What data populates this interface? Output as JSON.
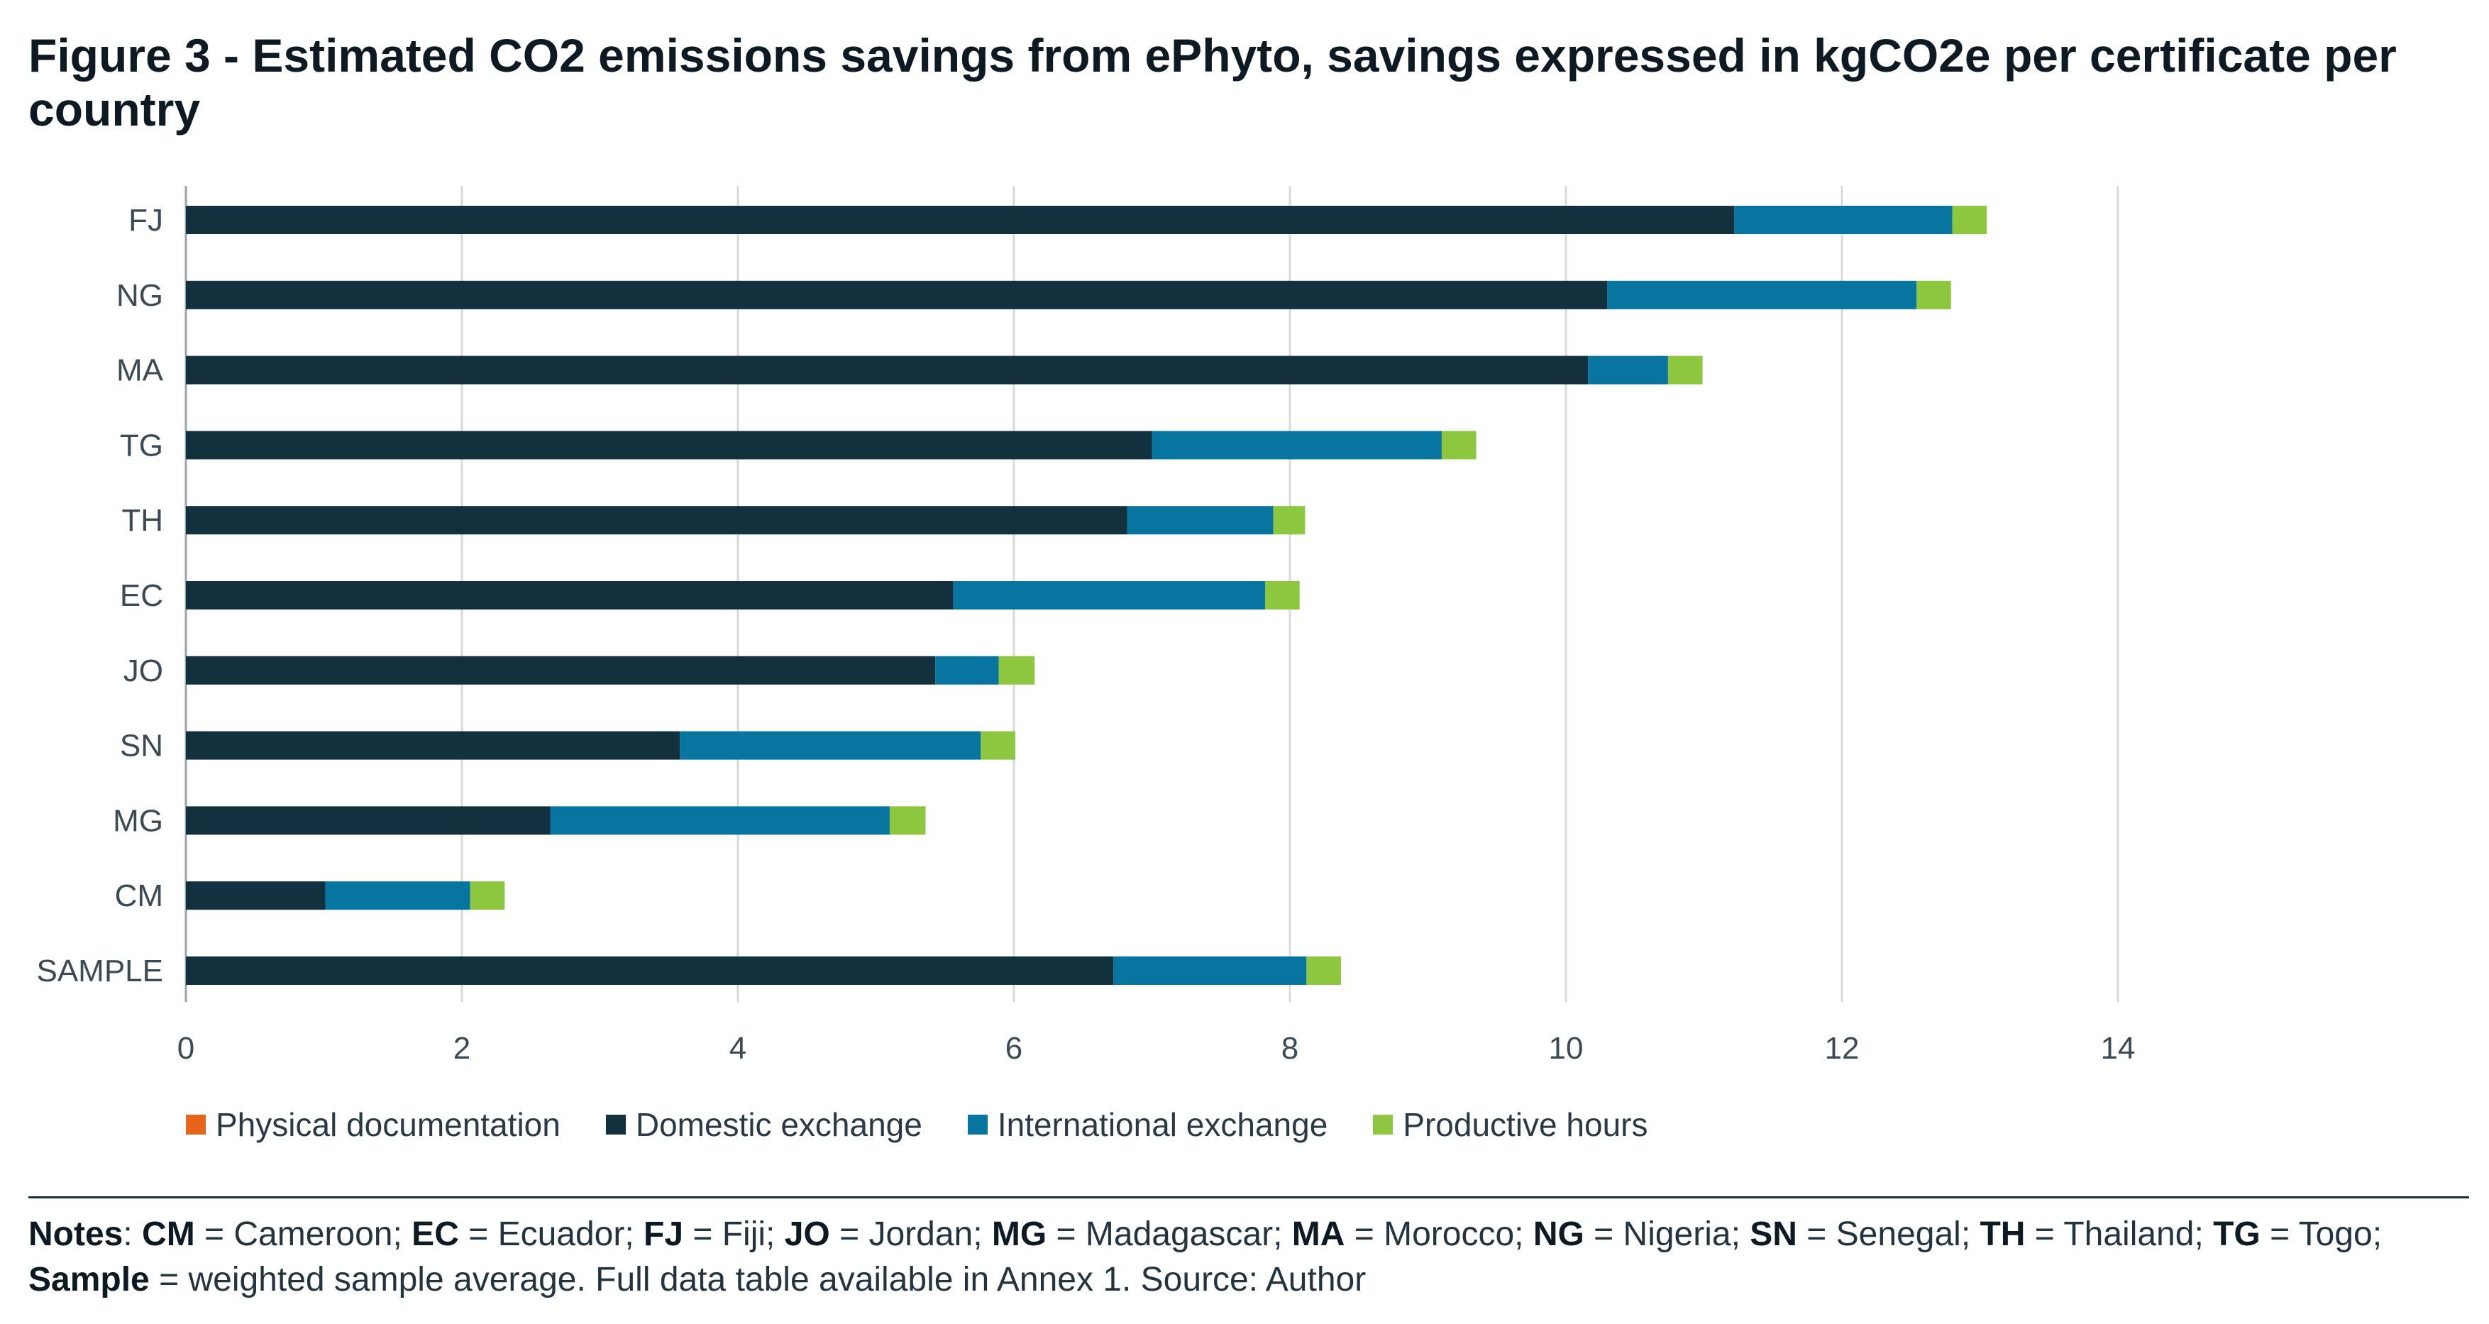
{
  "figure_title": "Figure 3 - Estimated CO2 emissions savings from ePhyto, savings expressed in kgCO2e per certificate per country",
  "chart_data": {
    "type": "bar",
    "orientation": "horizontal",
    "stacked": true,
    "categories": [
      "FJ",
      "NG",
      "MA",
      "TG",
      "TH",
      "EC",
      "JO",
      "SN",
      "MG",
      "CM",
      "SAMPLE"
    ],
    "series": [
      {
        "name": "Physical documentation",
        "color": "#e8641b",
        "values": [
          0,
          0,
          0,
          0,
          0,
          0,
          0,
          0,
          0,
          0,
          0
        ]
      },
      {
        "name": "Domestic exchange",
        "color": "#12303d",
        "values": [
          11.22,
          10.3,
          10.16,
          7.0,
          6.82,
          5.56,
          5.43,
          3.58,
          2.64,
          1.01,
          6.72
        ]
      },
      {
        "name": "International exchange",
        "color": "#0875a0",
        "values": [
          1.58,
          2.24,
          0.58,
          2.1,
          1.06,
          2.26,
          0.46,
          2.18,
          2.46,
          1.05,
          1.4
        ]
      },
      {
        "name": "Productive hours",
        "color": "#8dc63f",
        "values": [
          0.25,
          0.25,
          0.25,
          0.25,
          0.23,
          0.25,
          0.26,
          0.25,
          0.26,
          0.25,
          0.25
        ]
      }
    ],
    "xlim": [
      0,
      14
    ],
    "xticks": [
      0,
      2,
      4,
      6,
      8,
      10,
      12,
      14
    ],
    "grid": true,
    "legend_position": "bottom"
  },
  "notes": {
    "label": "Notes",
    "entries": [
      {
        "code": "CM",
        "name": "Cameroon"
      },
      {
        "code": "EC",
        "name": "Ecuador"
      },
      {
        "code": "FJ",
        "name": "Fiji"
      },
      {
        "code": "JO",
        "name": "Jordan"
      },
      {
        "code": "MG",
        "name": "Madagascar"
      },
      {
        "code": "MA",
        "name": "Morocco"
      },
      {
        "code": "NG",
        "name": "Nigeria"
      },
      {
        "code": "SN",
        "name": "Senegal"
      },
      {
        "code": "TH",
        "name": "Thailand"
      },
      {
        "code": "TG",
        "name": "Togo"
      },
      {
        "code": "Sample",
        "name": "weighted sample average"
      }
    ],
    "trailer": "Full data table available in Annex 1. Source: Author"
  }
}
